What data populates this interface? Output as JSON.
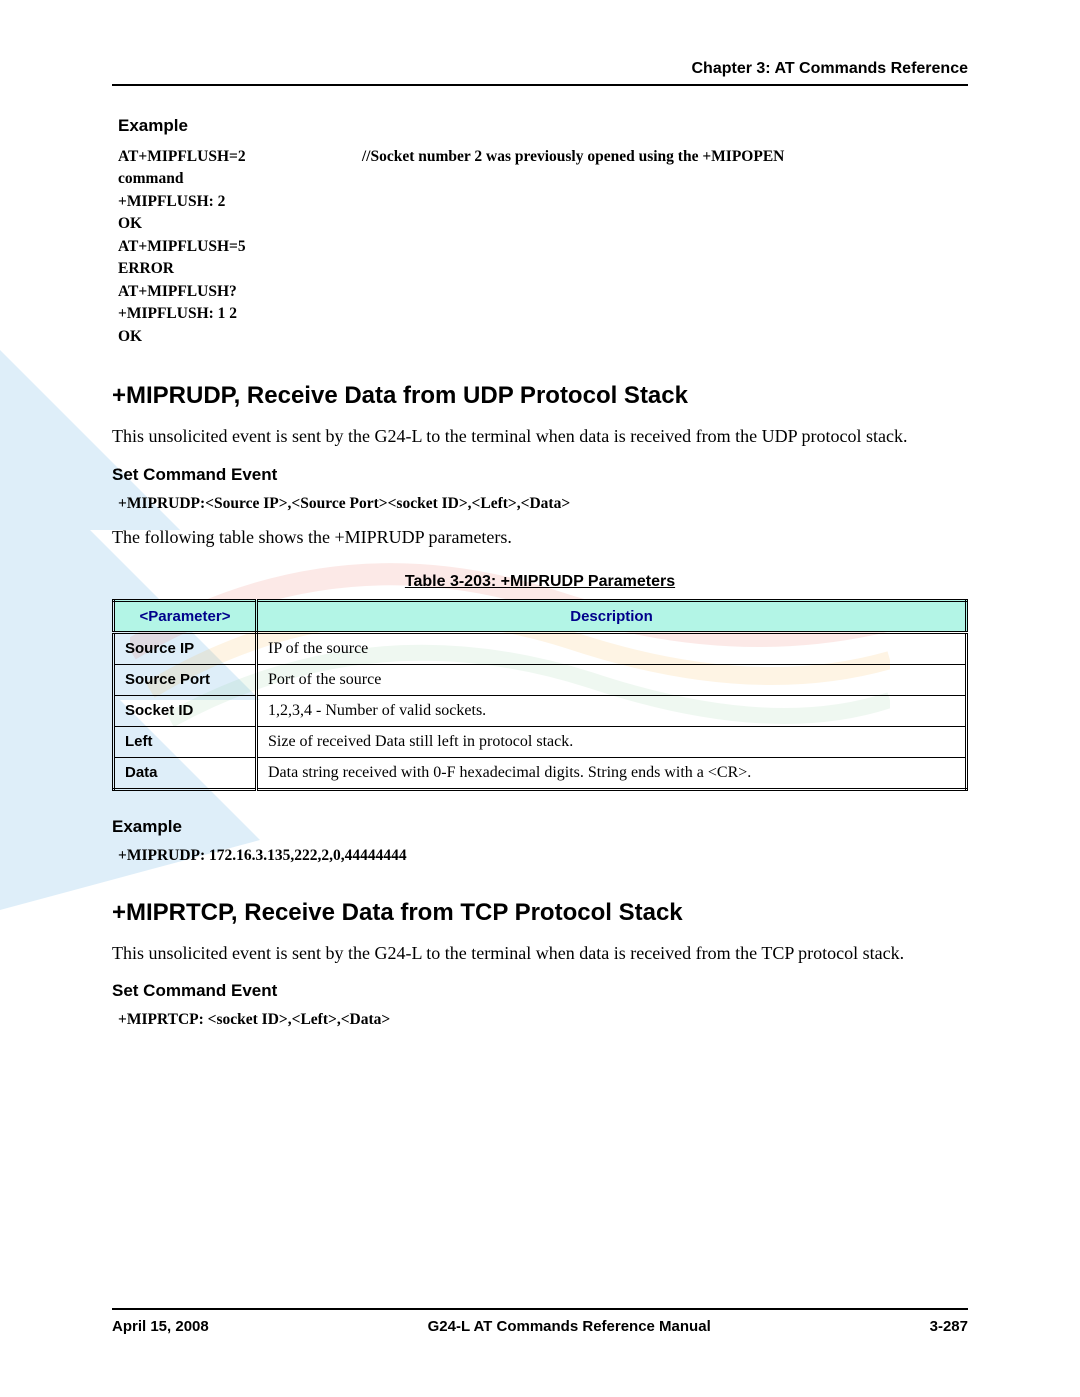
{
  "header": {
    "chapter": "Chapter 3:  AT Commands Reference"
  },
  "example1": {
    "title": "Example",
    "lines": [
      "AT+MIPFLUSH=2                              //Socket number 2 was previously opened using the +MIPOPEN",
      "command",
      "+MIPFLUSH: 2",
      "OK",
      "AT+MIPFLUSH=5",
      "ERROR",
      "AT+MIPFLUSH?",
      "+MIPFLUSH: 1 2",
      "OK"
    ]
  },
  "section1": {
    "title": "+MIPRUDP, Receive Data from UDP Protocol Stack",
    "body": "This unsolicited event is sent by the G24-L to the terminal when data is received from the UDP protocol stack.",
    "subhead": "Set Command Event",
    "syntax": "+MIPRUDP:<Source IP>,<Source Port><socket ID>,<Left>,<Data>",
    "body2": "The following table shows the +MIPRUDP parameters."
  },
  "table": {
    "caption": "Table 3-203: +MIPRUDP Parameters",
    "col_param": "<Parameter>",
    "col_desc": "Description",
    "header_bg": "#b3f5e6",
    "header_color": "#00008b",
    "rows": [
      {
        "p": "Source IP",
        "d": "IP of the source"
      },
      {
        "p": "Source Port",
        "d": "Port of the source"
      },
      {
        "p": "Socket ID",
        "d": "1,2,3,4 - Number of valid sockets."
      },
      {
        "p": "Left",
        "d": "Size of received Data still left in protocol stack."
      },
      {
        "p": "Data",
        "d": "Data string received with 0-F hexadecimal digits. String ends with a <CR>."
      }
    ]
  },
  "example2": {
    "title": "Example",
    "line": "+MIPRUDP: 172.16.3.135,222,2,0,44444444"
  },
  "section2": {
    "title": "+MIPRTCP, Receive Data from TCP Protocol Stack",
    "body": "This unsolicited event is sent by the G24-L to the terminal when data is received from the TCP protocol stack.",
    "subhead": "Set Command Event",
    "syntax": "+MIPRTCP: <socket ID>,<Left>,<Data>"
  },
  "footer": {
    "left": "April 15, 2008",
    "center": "G24-L AT Commands Reference Manual",
    "right": "3-287"
  },
  "watermark": {
    "arrow_color": "#4aa3e0",
    "swoosh_color_1": "#e94e3a",
    "swoosh_color_2": "#f5a623",
    "swoosh_color_3": "#7cc68d"
  }
}
